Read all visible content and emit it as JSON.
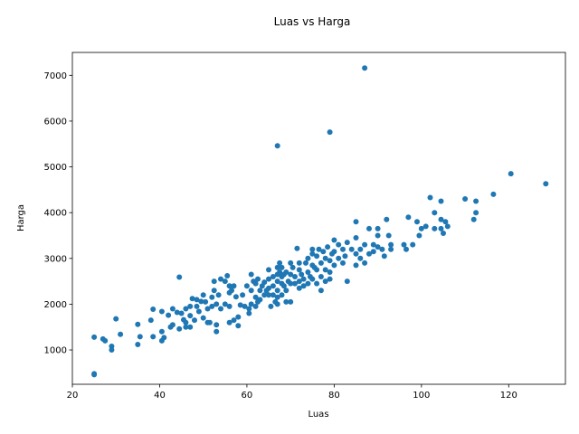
{
  "chart_data": {
    "type": "scatter",
    "title": "Luas vs Harga",
    "xlabel": "Luas",
    "ylabel": "Harga",
    "xlim": [
      20,
      133
    ],
    "ylim": [
      250,
      7500
    ],
    "xticks": [
      20,
      40,
      60,
      80,
      100,
      120
    ],
    "yticks": [
      1000,
      2000,
      3000,
      4000,
      5000,
      6000,
      7000
    ],
    "marker_color": "#1f77b4",
    "grid": false,
    "points": [
      [
        25,
        480
      ],
      [
        25,
        460
      ],
      [
        25,
        1280
      ],
      [
        27,
        1240
      ],
      [
        27.5,
        1200
      ],
      [
        29,
        1080
      ],
      [
        29,
        1000
      ],
      [
        30,
        1680
      ],
      [
        31,
        1340
      ],
      [
        35,
        1560
      ],
      [
        35,
        1120
      ],
      [
        35.5,
        1290
      ],
      [
        38,
        1650
      ],
      [
        38.5,
        1290
      ],
      [
        38.5,
        1890
      ],
      [
        40.5,
        1840
      ],
      [
        40.5,
        1400
      ],
      [
        40.5,
        1200
      ],
      [
        41,
        1270
      ],
      [
        42,
        1760
      ],
      [
        42.5,
        1500
      ],
      [
        43,
        1900
      ],
      [
        43,
        1550
      ],
      [
        44,
        1820
      ],
      [
        44.5,
        1460
      ],
      [
        44.5,
        2590
      ],
      [
        45,
        1800
      ],
      [
        45.5,
        1660
      ],
      [
        46,
        1600
      ],
      [
        46,
        1500
      ],
      [
        46,
        1900
      ],
      [
        47,
        1950
      ],
      [
        47,
        1750
      ],
      [
        47,
        1500
      ],
      [
        47.5,
        2120
      ],
      [
        48,
        1650
      ],
      [
        48.5,
        1950
      ],
      [
        48.5,
        2100
      ],
      [
        49,
        1840
      ],
      [
        49.5,
        2060
      ],
      [
        50,
        2200
      ],
      [
        50,
        1700
      ],
      [
        50.5,
        2050
      ],
      [
        51,
        1900
      ],
      [
        51,
        1600
      ],
      [
        51.5,
        1600
      ],
      [
        52,
        1950
      ],
      [
        52,
        2150
      ],
      [
        52.5,
        2300
      ],
      [
        52.5,
        2500
      ],
      [
        53,
        1400
      ],
      [
        53,
        1550
      ],
      [
        53,
        2000
      ],
      [
        53.5,
        2200
      ],
      [
        54,
        1900
      ],
      [
        54,
        2550
      ],
      [
        55,
        2000
      ],
      [
        55,
        2500
      ],
      [
        55.5,
        2620
      ],
      [
        56,
        2400
      ],
      [
        56,
        2250
      ],
      [
        56,
        1950
      ],
      [
        56,
        1600
      ],
      [
        56.5,
        2300
      ],
      [
        57,
        2400
      ],
      [
        57,
        1650
      ],
      [
        57.5,
        2160
      ],
      [
        58,
        1720
      ],
      [
        58,
        1530
      ],
      [
        58.5,
        1980
      ],
      [
        59,
        2200
      ],
      [
        59.5,
        1950
      ],
      [
        60,
        2400
      ],
      [
        60.5,
        1800
      ],
      [
        60.5,
        1900
      ],
      [
        61,
        2650
      ],
      [
        61,
        2300
      ],
      [
        61,
        2000
      ],
      [
        61.5,
        2500
      ],
      [
        62,
        2450
      ],
      [
        62,
        2150
      ],
      [
        62,
        1950
      ],
      [
        62.5,
        2050
      ],
      [
        62.5,
        2550
      ],
      [
        63,
        2300
      ],
      [
        63,
        2100
      ],
      [
        63.5,
        2400
      ],
      [
        64,
        2200
      ],
      [
        64,
        2480
      ],
      [
        64.5,
        2300
      ],
      [
        65,
        2550
      ],
      [
        65,
        2750
      ],
      [
        65,
        2350
      ],
      [
        65,
        2200
      ],
      [
        65.5,
        1950
      ],
      [
        66,
        2600
      ],
      [
        66,
        2400
      ],
      [
        66,
        2200
      ],
      [
        66.5,
        2050
      ],
      [
        67,
        2800
      ],
      [
        67,
        2650
      ],
      [
        67,
        2500
      ],
      [
        67,
        2300
      ],
      [
        67,
        2150
      ],
      [
        67,
        2000
      ],
      [
        67,
        5460
      ],
      [
        67.5,
        2700
      ],
      [
        67.5,
        2900
      ],
      [
        68,
        2800
      ],
      [
        68,
        2600
      ],
      [
        68,
        2450
      ],
      [
        68,
        2200
      ],
      [
        68.5,
        2650
      ],
      [
        68.5,
        2400
      ],
      [
        69,
        2050
      ],
      [
        69,
        2700
      ],
      [
        69,
        2300
      ],
      [
        69.5,
        2500
      ],
      [
        70,
        2900
      ],
      [
        70,
        2650
      ],
      [
        70,
        2450
      ],
      [
        70,
        2050
      ],
      [
        70.5,
        2800
      ],
      [
        71,
        2600
      ],
      [
        71,
        2450
      ],
      [
        71.5,
        3220
      ],
      [
        72,
        2900
      ],
      [
        72,
        2750
      ],
      [
        72,
        2500
      ],
      [
        72,
        2350
      ],
      [
        72.5,
        2650
      ],
      [
        73,
        2550
      ],
      [
        73,
        2400
      ],
      [
        73.5,
        2900
      ],
      [
        74,
        3000
      ],
      [
        74,
        2700
      ],
      [
        74,
        2450
      ],
      [
        74.5,
        2600
      ],
      [
        75,
        3200
      ],
      [
        75,
        3100
      ],
      [
        75,
        2850
      ],
      [
        75,
        2550
      ],
      [
        75.5,
        2800
      ],
      [
        76,
        3050
      ],
      [
        76,
        2750
      ],
      [
        76,
        2450
      ],
      [
        76.5,
        3200
      ],
      [
        77,
        2900
      ],
      [
        77,
        2600
      ],
      [
        77,
        2300
      ],
      [
        77.5,
        3150
      ],
      [
        78,
        3000
      ],
      [
        78,
        2750
      ],
      [
        78,
        2500
      ],
      [
        78.5,
        3250
      ],
      [
        79,
        2950
      ],
      [
        79,
        2700
      ],
      [
        79,
        2550
      ],
      [
        79,
        5760
      ],
      [
        79.5,
        3100
      ],
      [
        80,
        3400
      ],
      [
        80,
        3150
      ],
      [
        80,
        2850
      ],
      [
        81,
        3000
      ],
      [
        81,
        3300
      ],
      [
        82,
        3200
      ],
      [
        82,
        2900
      ],
      [
        82.5,
        3050
      ],
      [
        83,
        3350
      ],
      [
        83,
        2500
      ],
      [
        84,
        3200
      ],
      [
        85,
        3100
      ],
      [
        85,
        3450
      ],
      [
        85,
        2850
      ],
      [
        85,
        3800
      ],
      [
        86,
        3000
      ],
      [
        86,
        3200
      ],
      [
        87,
        2900
      ],
      [
        87,
        3300
      ],
      [
        87,
        7160
      ],
      [
        88,
        3100
      ],
      [
        88,
        3650
      ],
      [
        89,
        3150
      ],
      [
        89,
        3300
      ],
      [
        90,
        3250
      ],
      [
        90,
        3500
      ],
      [
        90,
        3650
      ],
      [
        91,
        3200
      ],
      [
        91.5,
        3050
      ],
      [
        92,
        3850
      ],
      [
        92.5,
        3500
      ],
      [
        93,
        3200
      ],
      [
        93,
        3300
      ],
      [
        96,
        3300
      ],
      [
        96.5,
        3200
      ],
      [
        97,
        3900
      ],
      [
        98,
        3300
      ],
      [
        99,
        3800
      ],
      [
        99.5,
        3500
      ],
      [
        100,
        3650
      ],
      [
        101,
        3700
      ],
      [
        102,
        4330
      ],
      [
        103,
        3650
      ],
      [
        103,
        4000
      ],
      [
        104.5,
        3650
      ],
      [
        104.5,
        3850
      ],
      [
        104.5,
        4250
      ],
      [
        105,
        3550
      ],
      [
        105.5,
        3800
      ],
      [
        106,
        3700
      ],
      [
        110,
        4300
      ],
      [
        112,
        3850
      ],
      [
        112.5,
        4250
      ],
      [
        112.5,
        4000
      ],
      [
        116.5,
        4400
      ],
      [
        120.5,
        4850
      ],
      [
        128.5,
        4630
      ]
    ]
  }
}
